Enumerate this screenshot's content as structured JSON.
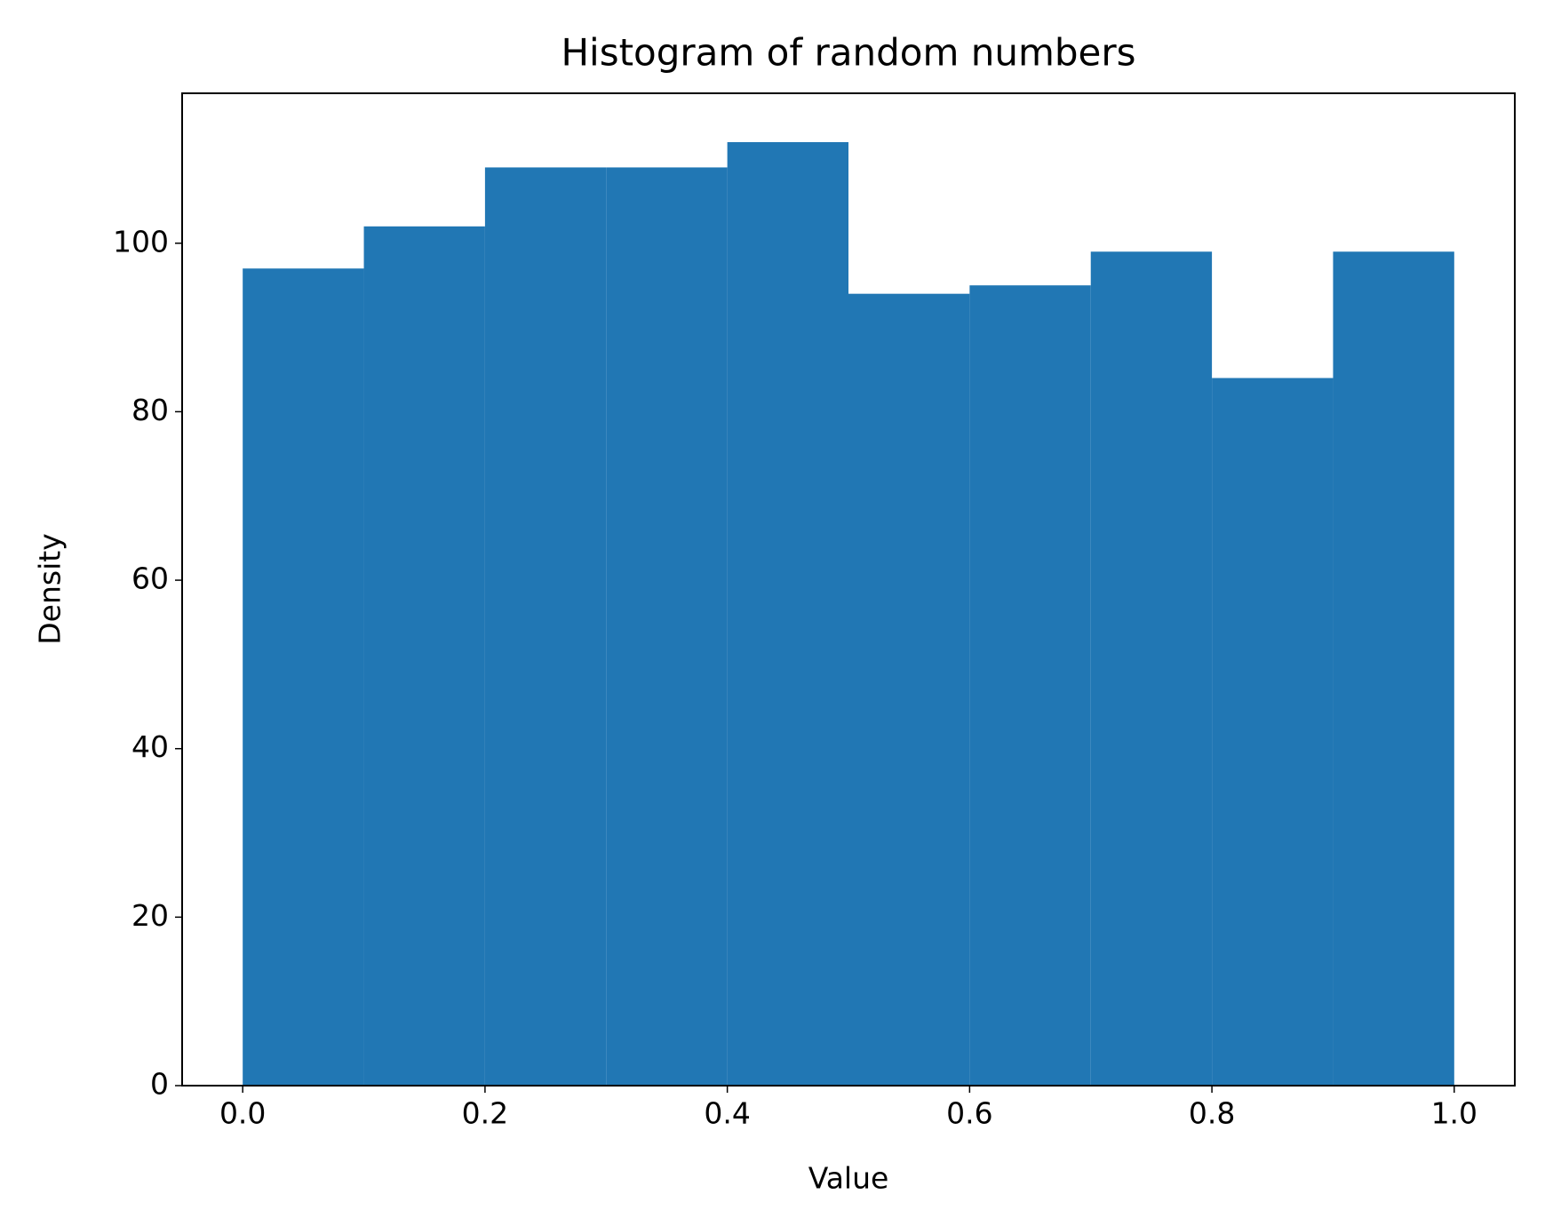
{
  "chart_data": {
    "type": "histogram",
    "title": "Histogram of random numbers",
    "x_label": "Value",
    "y_label": "Density",
    "bins": [
      0,
      0.1,
      0.2,
      0.3,
      0.4,
      0.5,
      0.6,
      0.7,
      0.8,
      0.9,
      1
    ],
    "values": [
      97,
      102,
      109,
      109,
      112,
      94,
      95,
      99,
      84,
      99
    ],
    "color": "#2177b4",
    "xlim": [
      -0.05,
      1.05
    ],
    "ylim": [
      0,
      117.8
    ],
    "xticks": [
      {
        "value": 0,
        "label": "0.0"
      },
      0.2,
      0.4,
      0.6,
      0.8,
      {
        "value": 1,
        "label": "1.0"
      }
    ],
    "yticks": [
      0,
      20,
      40,
      60,
      80,
      100
    ]
  }
}
